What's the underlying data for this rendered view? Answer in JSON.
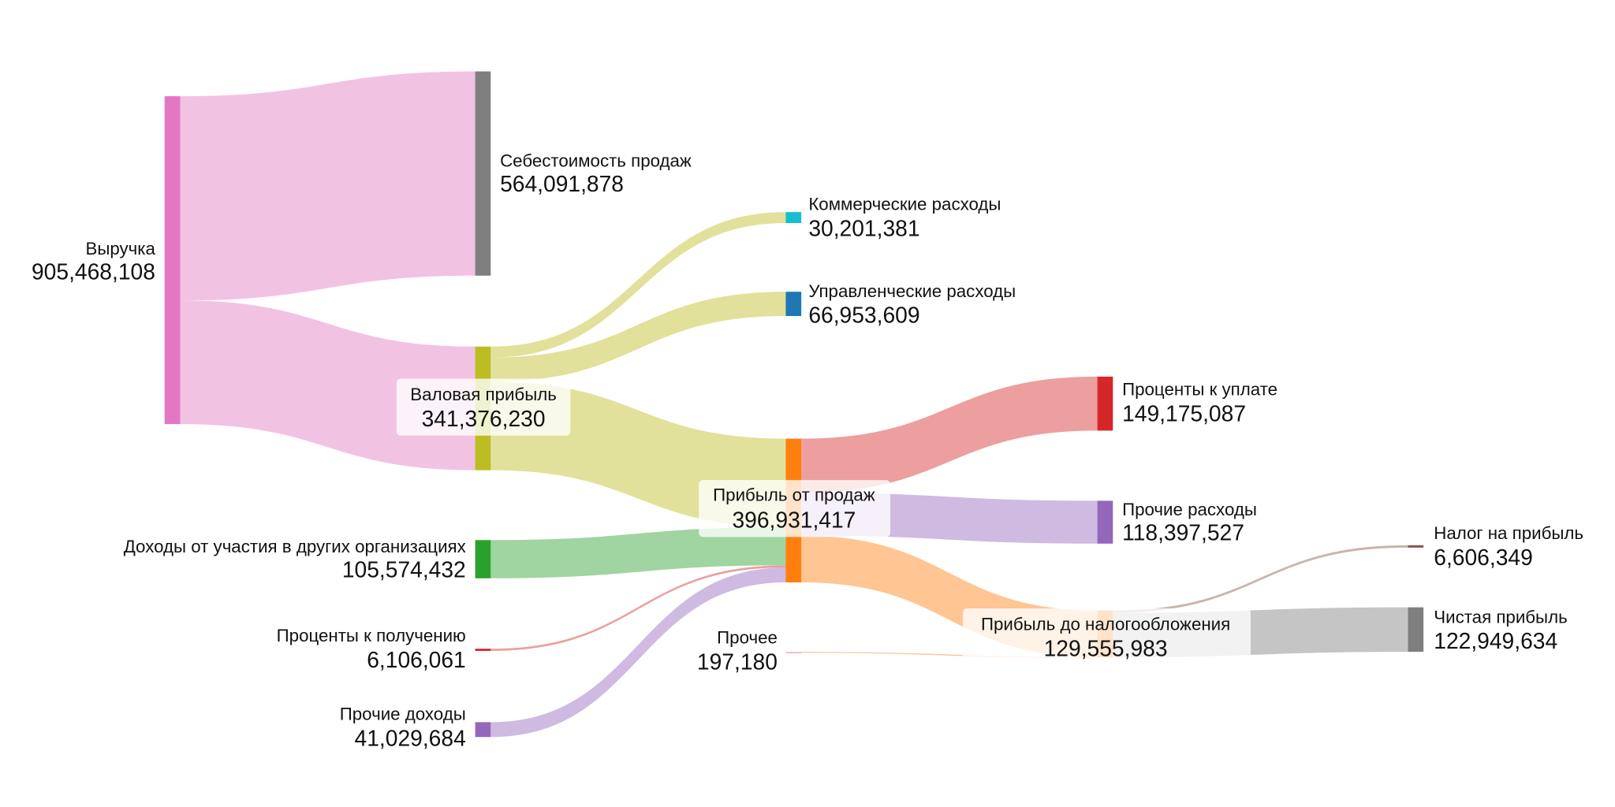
{
  "chart_data": {
    "type": "sankey",
    "title": "",
    "nodes": [
      {
        "id": "revenue",
        "name": "Выручка",
        "value": "905,468,108",
        "amount": 905468108,
        "color": "#e377c2"
      },
      {
        "id": "cogs",
        "name": "Себестоимость продаж",
        "value": "564,091,878",
        "amount": 564091878,
        "color": "#7f7f7f"
      },
      {
        "id": "gross",
        "name": "Валовая прибыль",
        "value": "341,376,230",
        "amount": 341376230,
        "color": "#bcbd22"
      },
      {
        "id": "equity_income",
        "name": "Доходы от участия в других организациях",
        "value": "105,574,432",
        "amount": 105574432,
        "color": "#2ca02c"
      },
      {
        "id": "interest_income",
        "name": "Проценты к получению",
        "value": "6,106,061",
        "amount": 6106061,
        "color": "#d62728"
      },
      {
        "id": "other_income",
        "name": "Прочие доходы",
        "value": "41,029,684",
        "amount": 41029684,
        "color": "#9467bd"
      },
      {
        "id": "selling",
        "name": "Коммерческие расходы",
        "value": "30,201,381",
        "amount": 30201381,
        "color": "#17becf"
      },
      {
        "id": "admin",
        "name": "Управленческие расходы",
        "value": "66,953,609",
        "amount": 66953609,
        "color": "#1f77b4"
      },
      {
        "id": "op_profit",
        "name": "Прибыль от продаж",
        "value": "396,931,417",
        "amount": 396931417,
        "color": "#ff7f0e"
      },
      {
        "id": "other",
        "name": "Прочее",
        "value": "197,180",
        "amount": 197180,
        "color": "#f7b6d2"
      },
      {
        "id": "interest_exp",
        "name": "Проценты к уплате",
        "value": "149,175,087",
        "amount": 149175087,
        "color": "#d62728"
      },
      {
        "id": "other_exp",
        "name": "Прочие расходы",
        "value": "118,397,527",
        "amount": 118397527,
        "color": "#9467bd"
      },
      {
        "id": "pretax",
        "name": "Прибыль до налогообложения",
        "value": "129,555,983",
        "amount": 129555983,
        "color": "#ff7f0e"
      },
      {
        "id": "tax",
        "name": "Налог на прибыль",
        "value": "6,606,349",
        "amount": 6606349,
        "color": "#8c564b"
      },
      {
        "id": "net",
        "name": "Чистая прибыль",
        "value": "122,949,634",
        "amount": 122949634,
        "color": "#7f7f7f"
      }
    ],
    "links": [
      {
        "source": "revenue",
        "target": "cogs",
        "value": 564091878,
        "color": "#e377c2"
      },
      {
        "source": "revenue",
        "target": "gross",
        "value": 341376230,
        "color": "#e377c2"
      },
      {
        "source": "gross",
        "target": "selling",
        "value": 30201381,
        "color": "#bcbd22"
      },
      {
        "source": "gross",
        "target": "admin",
        "value": 66953609,
        "color": "#bcbd22"
      },
      {
        "source": "gross",
        "target": "op_profit",
        "value": 244221240,
        "color": "#bcbd22"
      },
      {
        "source": "equity_income",
        "target": "op_profit",
        "value": 105574432,
        "color": "#2ca02c"
      },
      {
        "source": "interest_income",
        "target": "op_profit",
        "value": 6106061,
        "color": "#d62728"
      },
      {
        "source": "other_income",
        "target": "op_profit",
        "value": 41029684,
        "color": "#9467bd"
      },
      {
        "source": "op_profit",
        "target": "interest_exp",
        "value": 149175087,
        "color": "#d62728"
      },
      {
        "source": "op_profit",
        "target": "other_exp",
        "value": 118397527,
        "color": "#9467bd"
      },
      {
        "source": "op_profit",
        "target": "pretax",
        "value": 129358803,
        "color": "#ff7f0e"
      },
      {
        "source": "other",
        "target": "pretax",
        "value": 197180,
        "color": "#ff7f0e"
      },
      {
        "source": "pretax",
        "target": "tax",
        "value": 6606349,
        "color": "#8c564b"
      },
      {
        "source": "pretax",
        "target": "net",
        "value": 122949634,
        "color": "#7f7f7f"
      }
    ]
  }
}
